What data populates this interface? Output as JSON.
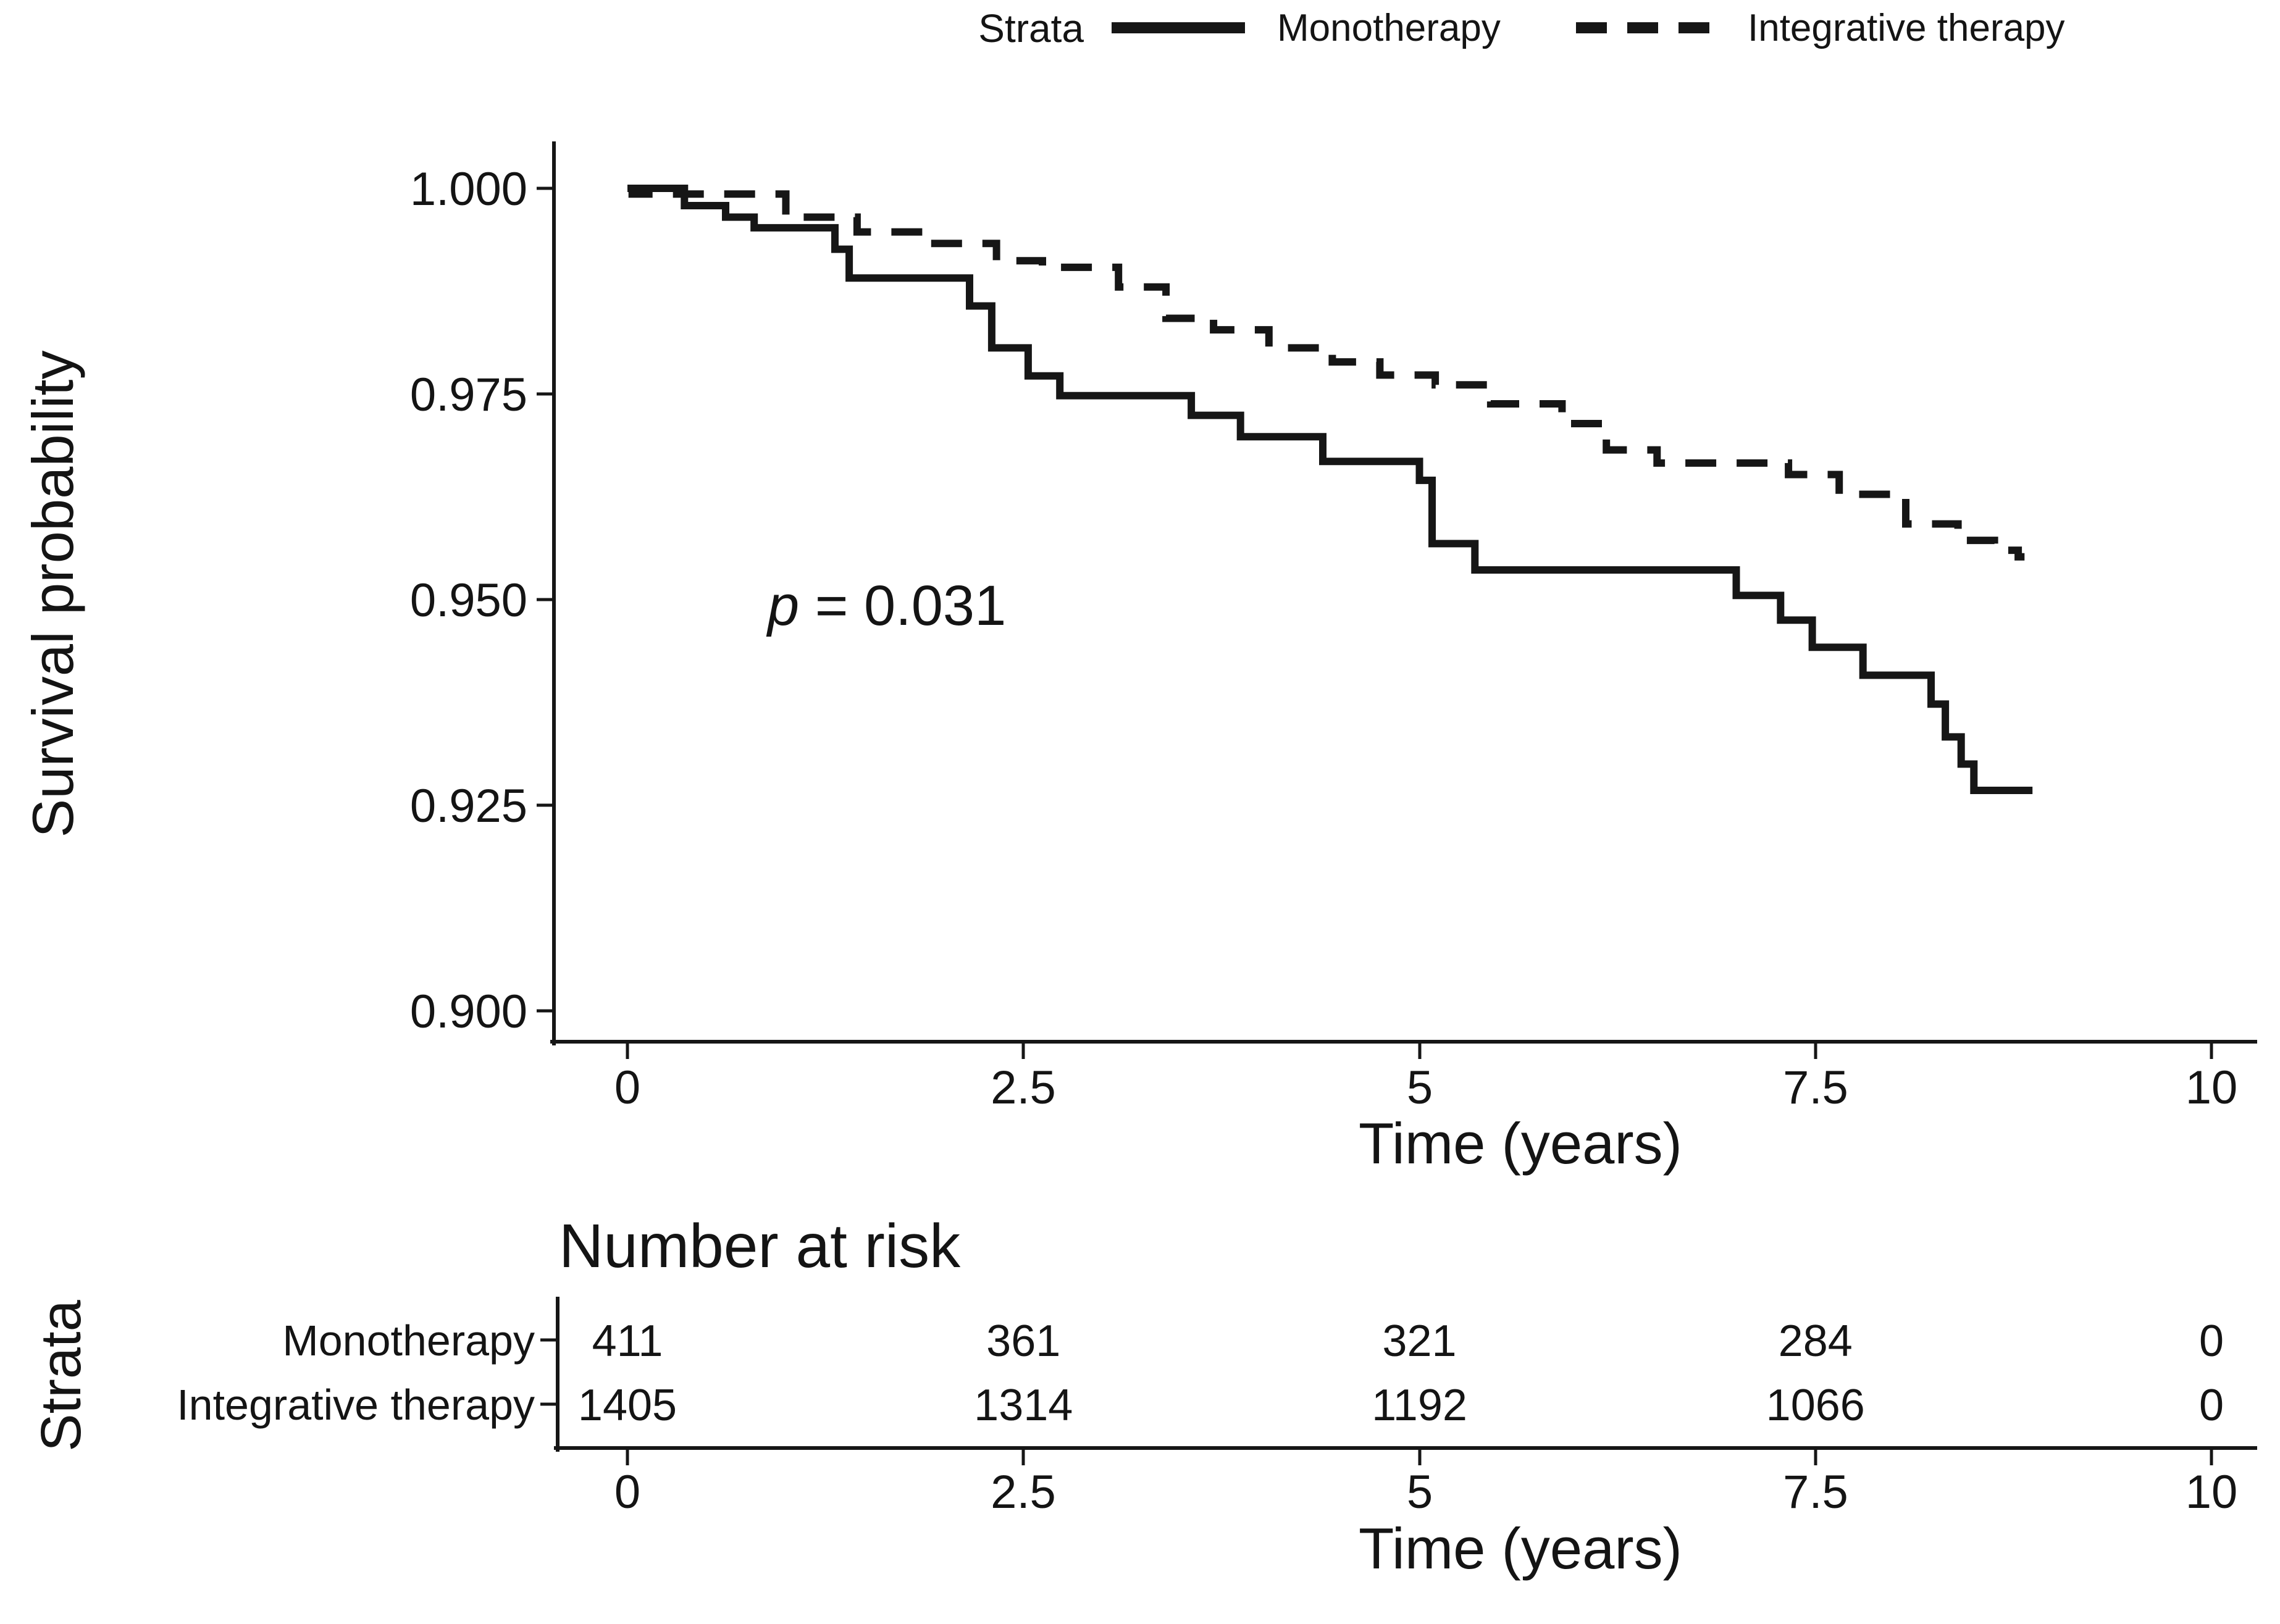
{
  "legend": {
    "title": "Strata",
    "items": [
      {
        "label": "Monotherapy",
        "style": "solid"
      },
      {
        "label": "Integrative therapy",
        "style": "dashed"
      }
    ]
  },
  "y_axis": {
    "title": "Survival probability",
    "ticks": [
      "1.000",
      "0.975",
      "0.950",
      "0.925",
      "0.900"
    ]
  },
  "x_axis": {
    "title": "Time (years)",
    "ticks": [
      "0",
      "2.5",
      "5",
      "7.5",
      "10"
    ]
  },
  "annotation": {
    "p_symbol": "p",
    "p_rest": " = 0.031"
  },
  "risk_table": {
    "title": "Number at risk",
    "axis_label": "Strata",
    "x_title": "Time (years)",
    "x_ticks": [
      "0",
      "2.5",
      "5",
      "7.5",
      "10"
    ],
    "rows": [
      {
        "label": "Monotherapy",
        "values": [
          "411",
          "361",
          "321",
          "284",
          "0"
        ]
      },
      {
        "label": "Integrative therapy",
        "values": [
          "1405",
          "1314",
          "1192",
          "1066",
          "0"
        ]
      }
    ]
  },
  "chart_data": {
    "type": "line",
    "subtype": "kaplan-meier-step",
    "title": "",
    "xlabel": "Time (years)",
    "ylabel": "Survival probability",
    "xlim": [
      0,
      10
    ],
    "ylim": [
      0.9,
      1.0
    ],
    "x_ticks": [
      0,
      2.5,
      5,
      7.5,
      10
    ],
    "y_ticks": [
      1.0,
      0.975,
      0.95,
      0.925,
      0.9
    ],
    "grid": false,
    "legend_position": "top",
    "p_value_text": "p = 0.031",
    "series": [
      {
        "name": "Monotherapy",
        "line": "solid",
        "end_time": 8.87,
        "points": [
          [
            0,
            1.0
          ],
          [
            0.36,
            0.9979
          ],
          [
            0.62,
            0.9965
          ],
          [
            0.8,
            0.9952
          ],
          [
            1.31,
            0.9926
          ],
          [
            1.4,
            0.9891
          ],
          [
            2.16,
            0.9857
          ],
          [
            2.3,
            0.9806
          ],
          [
            2.53,
            0.9772
          ],
          [
            2.73,
            0.9748
          ],
          [
            3.56,
            0.9724
          ],
          [
            3.87,
            0.9698
          ],
          [
            4.39,
            0.9668
          ],
          [
            5.0,
            0.9645
          ],
          [
            5.08,
            0.9568
          ],
          [
            5.35,
            0.9536
          ],
          [
            7.0,
            0.9505
          ],
          [
            7.28,
            0.9475
          ],
          [
            7.48,
            0.9442
          ],
          [
            7.8,
            0.9408
          ],
          [
            8.23,
            0.9373
          ],
          [
            8.32,
            0.9333
          ],
          [
            8.42,
            0.93
          ],
          [
            8.5,
            0.9268
          ]
        ]
      },
      {
        "name": "Integrative therapy",
        "line": "dashed",
        "end_time": 8.82,
        "points": [
          [
            0,
            1.0
          ],
          [
            0.03,
            0.9993
          ],
          [
            1.0,
            0.9965
          ],
          [
            1.45,
            0.9947
          ],
          [
            1.9,
            0.9933
          ],
          [
            2.33,
            0.9912
          ],
          [
            2.62,
            0.9904
          ],
          [
            3.1,
            0.988
          ],
          [
            3.4,
            0.9842
          ],
          [
            3.7,
            0.9828
          ],
          [
            4.05,
            0.9806
          ],
          [
            4.45,
            0.9789
          ],
          [
            4.75,
            0.9773
          ],
          [
            5.1,
            0.9761
          ],
          [
            5.45,
            0.9738
          ],
          [
            5.9,
            0.9714
          ],
          [
            6.18,
            0.9682
          ],
          [
            6.5,
            0.9666
          ],
          [
            7.33,
            0.9652
          ],
          [
            7.65,
            0.9628
          ],
          [
            8.07,
            0.9592
          ],
          [
            8.4,
            0.9572
          ],
          [
            8.63,
            0.956
          ],
          [
            8.78,
            0.9552
          ]
        ]
      }
    ],
    "number_at_risk": {
      "times": [
        0,
        2.5,
        5,
        7.5,
        10
      ],
      "Monotherapy": [
        411,
        361,
        321,
        284,
        0
      ],
      "Integrative therapy": [
        1405,
        1314,
        1192,
        1066,
        0
      ]
    }
  }
}
